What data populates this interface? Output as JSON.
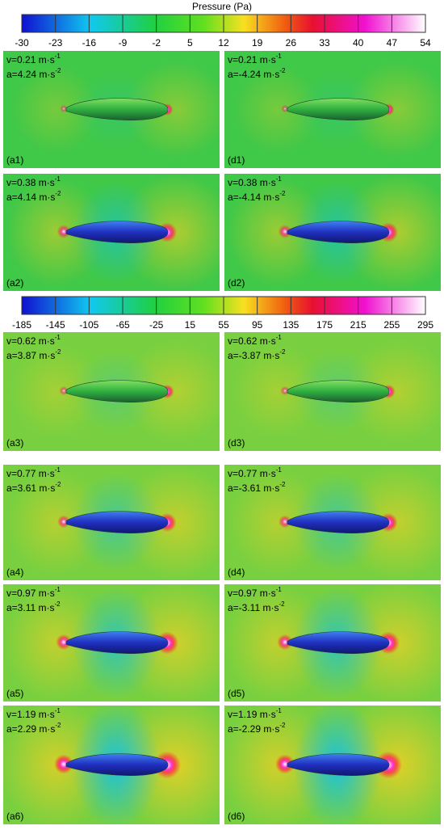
{
  "colorbars": [
    {
      "title": "Pressure (Pa)",
      "ticks": [
        -30,
        -23,
        -16,
        -9,
        -2,
        5,
        12,
        19,
        26,
        33,
        40,
        47,
        54
      ]
    },
    {
      "ticks": [
        -185,
        -145,
        -105,
        -65,
        -25,
        15,
        55,
        95,
        135,
        175,
        215,
        255,
        295
      ]
    }
  ],
  "panels": [
    {
      "v": "v=0.21 m·s",
      "v_sup": "-1",
      "a": "a=4.24 m·s",
      "a_sup": "-2",
      "label": "(a1)"
    },
    {
      "v": "v=0.21 m·s",
      "v_sup": "-1",
      "a": "a=-4.24 m·s",
      "a_sup": "-2",
      "label": "(d1)"
    },
    {
      "v": "v=0.38 m·s",
      "v_sup": "-1",
      "a": "a=4.14 m·s",
      "a_sup": "-2",
      "label": "(a2)"
    },
    {
      "v": "v=0.38 m·s",
      "v_sup": "-1",
      "a": "a=-4.14 m·s",
      "a_sup": "-2",
      "label": "(d2)"
    },
    {
      "v": "v=0.62 m·s",
      "v_sup": "-1",
      "a": "a=3.87 m·s",
      "a_sup": "-2",
      "label": "(a3)"
    },
    {
      "v": "v=0.62 m·s",
      "v_sup": "-1",
      "a": "a=-3.87 m·s",
      "a_sup": "-2",
      "label": "(d3)"
    },
    {
      "v": "v=0.77 m·s",
      "v_sup": "-1",
      "a": "a=3.61 m·s",
      "a_sup": "-2",
      "label": "(a4)"
    },
    {
      "v": "v=0.77 m·s",
      "v_sup": "-1",
      "a": "a=-3.61 m·s",
      "a_sup": "-2",
      "label": "(d4)"
    },
    {
      "v": "v=0.97 m·s",
      "v_sup": "-1",
      "a": "a=3.11 m·s",
      "a_sup": "-2",
      "label": "(a5)"
    },
    {
      "v": "v=0.97 m·s",
      "v_sup": "-1",
      "a": "a=-3.11 m·s",
      "a_sup": "-2",
      "label": "(d5)"
    },
    {
      "v": "v=1.19 m·s",
      "v_sup": "-1",
      "a": "a=2.29 m·s",
      "a_sup": "-2",
      "label": "(a6)"
    },
    {
      "v": "v=1.19 m·s",
      "v_sup": "-1",
      "a": "a=-2.29 m·s",
      "a_sup": "-2",
      "label": "(d6)"
    }
  ]
}
